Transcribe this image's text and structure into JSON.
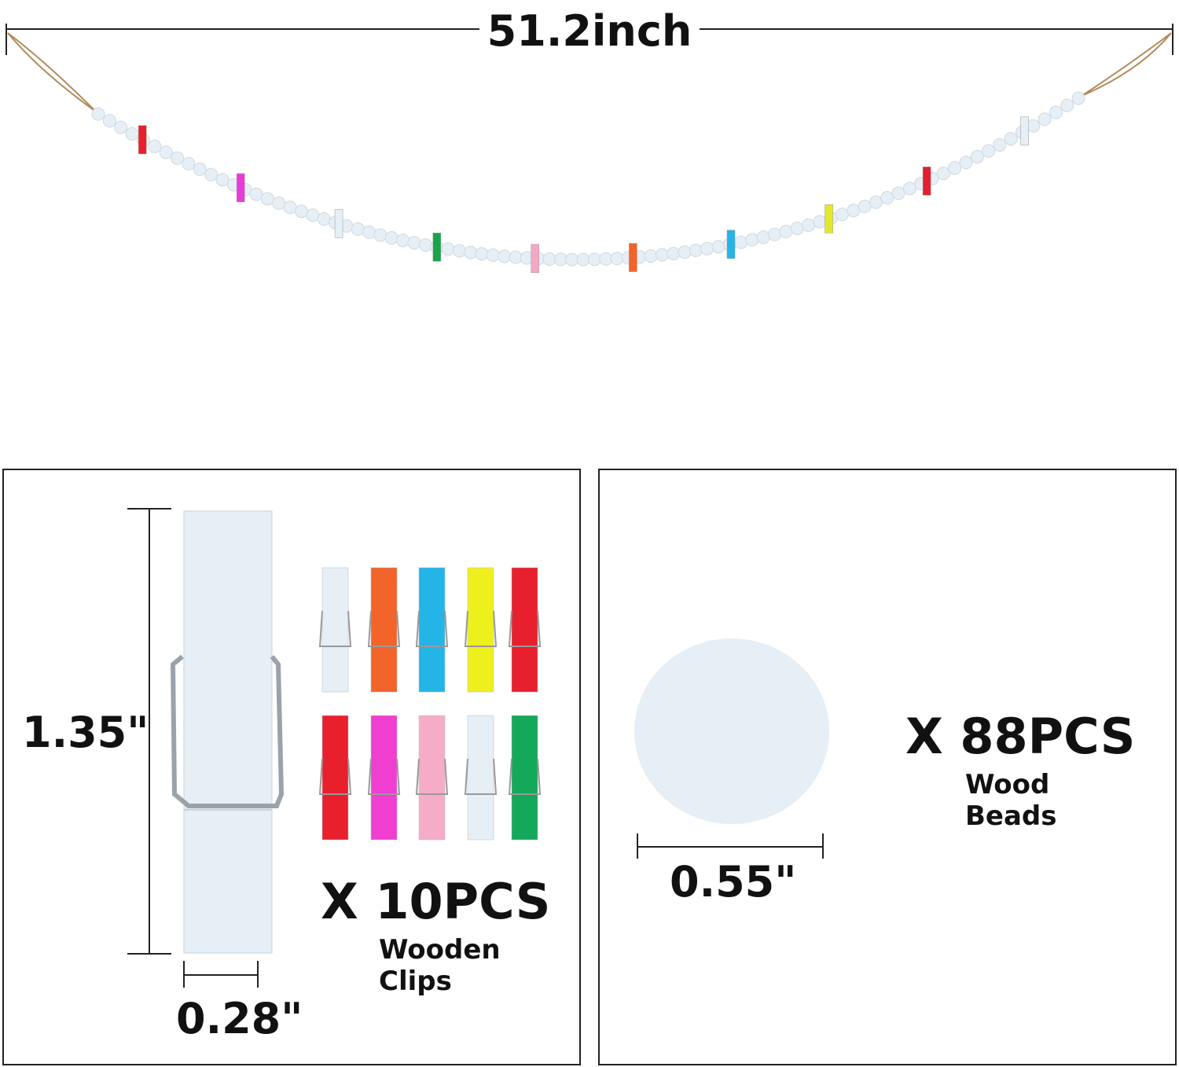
{
  "length_label": "51.2inch",
  "clip_height_label": "1.35\"",
  "clip_width_label": "0.28\"",
  "clip_count": "X 10PCS",
  "clip_name": "Wooden Clips",
  "bead_size_label": "0.55\"",
  "bead_count": "X 88PCS",
  "bead_name": "Wood Beads",
  "garland_clip_colors": [
    "#e8202a",
    "#e83ad8",
    "#e6eef6",
    "#1aa44a",
    "#f4a8c4",
    "#f2642a",
    "#25b4e8",
    "#e2e82a",
    "#e0202e",
    "#e6eef6"
  ],
  "clip_grid_colors": [
    [
      "#e6eef6",
      "#f2642a",
      "#25b4e8",
      "#eef01e",
      "#e8202e"
    ],
    [
      "#e8202e",
      "#f03ed0",
      "#f6acc8",
      "#e6eef6",
      "#14a85a"
    ]
  ],
  "bead_color": "#e6eef6",
  "cord_color": "#b08a5a"
}
